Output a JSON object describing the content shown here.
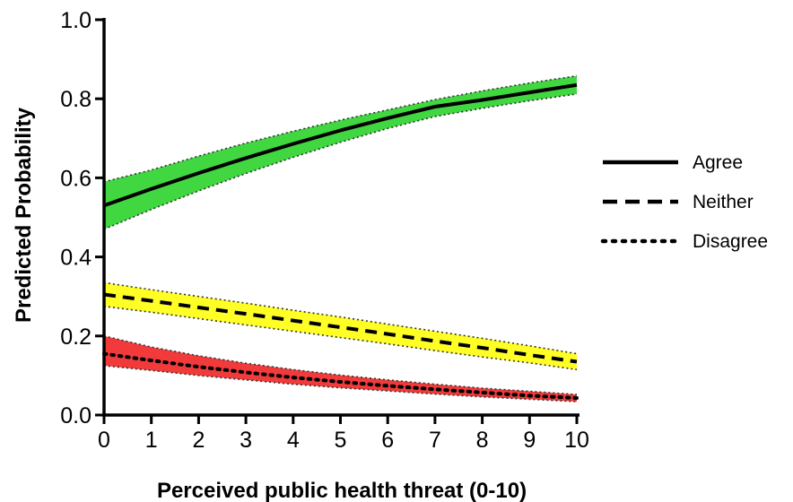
{
  "chart_data": {
    "type": "line",
    "xlabel": "Perceived public health threat (0-10)",
    "ylabel": "Predicted Probability",
    "xlim": [
      0,
      10
    ],
    "ylim": [
      0,
      1
    ],
    "x_ticks": [
      "0",
      "1",
      "2",
      "3",
      "4",
      "5",
      "6",
      "7",
      "8",
      "9",
      "10"
    ],
    "y_ticks": [
      "0.0",
      "0.2",
      "0.4",
      "0.6",
      "0.8",
      "1.0"
    ],
    "x_tick_values": [
      0,
      1,
      2,
      3,
      4,
      5,
      6,
      7,
      8,
      9,
      10
    ],
    "y_tick_values": [
      0,
      0.2,
      0.4,
      0.6,
      0.8,
      1.0
    ],
    "grid": false,
    "legend_position": "right",
    "x": [
      0,
      1,
      2,
      3,
      4,
      5,
      6,
      7,
      8,
      9,
      10
    ],
    "series": [
      {
        "name": "Agree",
        "line_style": "solid",
        "band_color": "#1fd01f",
        "values": [
          0.53,
          0.572,
          0.612,
          0.65,
          0.686,
          0.72,
          0.751,
          0.78,
          0.797,
          0.816,
          0.835
        ],
        "lower": [
          0.47,
          0.52,
          0.567,
          0.611,
          0.652,
          0.69,
          0.725,
          0.755,
          0.776,
          0.795,
          0.812
        ],
        "upper": [
          0.59,
          0.62,
          0.655,
          0.688,
          0.718,
          0.746,
          0.772,
          0.798,
          0.82,
          0.84,
          0.858
        ]
      },
      {
        "name": "Neither",
        "line_style": "dashed",
        "band_color": "#ffff00",
        "values": [
          0.305,
          0.289,
          0.272,
          0.256,
          0.239,
          0.222,
          0.205,
          0.187,
          0.17,
          0.152,
          0.135
        ],
        "lower": [
          0.275,
          0.26,
          0.244,
          0.228,
          0.212,
          0.196,
          0.18,
          0.163,
          0.147,
          0.132,
          0.115
        ],
        "upper": [
          0.335,
          0.317,
          0.3,
          0.283,
          0.265,
          0.248,
          0.23,
          0.212,
          0.194,
          0.175,
          0.155
        ]
      },
      {
        "name": "Disagree",
        "line_style": "dotted",
        "band_color": "#f01818",
        "values": [
          0.155,
          0.138,
          0.122,
          0.108,
          0.095,
          0.084,
          0.074,
          0.065,
          0.057,
          0.049,
          0.043
        ],
        "lower": [
          0.125,
          0.113,
          0.1,
          0.089,
          0.078,
          0.069,
          0.061,
          0.053,
          0.046,
          0.04,
          0.034
        ],
        "upper": [
          0.2,
          0.172,
          0.15,
          0.131,
          0.115,
          0.101,
          0.089,
          0.078,
          0.068,
          0.06,
          0.052
        ]
      }
    ]
  }
}
